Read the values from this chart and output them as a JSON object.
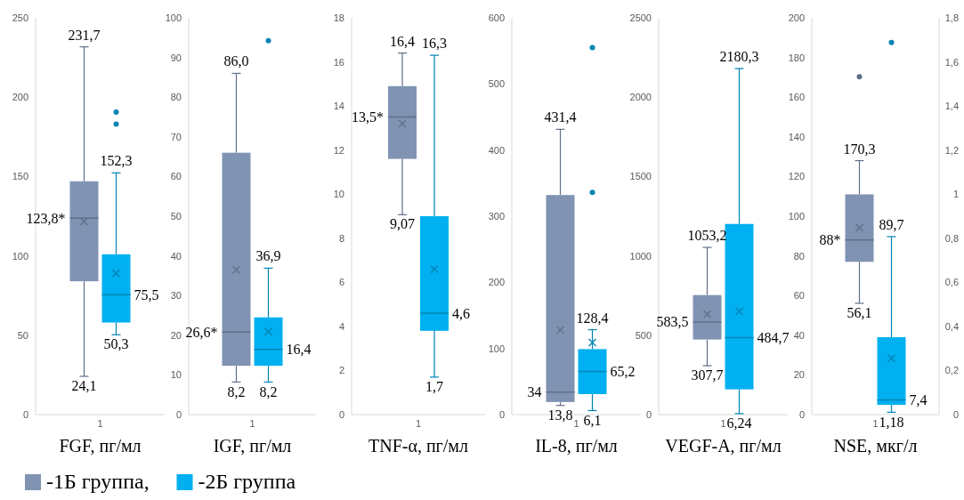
{
  "chart_data": [
    {
      "type": "box",
      "xlabel": "FGF, пг/мл",
      "categories": [
        "1"
      ],
      "ylim": [
        0,
        250
      ],
      "yticks": [
        0,
        50,
        100,
        150,
        200,
        250
      ],
      "legend": "bottom",
      "series": [
        {
          "name": "-1Б группа,",
          "color": "#8093b3",
          "boxes": [
            {
              "low": 24.1,
              "q1": 84,
              "median": 123.8,
              "q3": 147,
              "high": 231.7,
              "mean": 121.6
            }
          ]
        },
        {
          "name": "-2Б группа",
          "color": "#00b0f0",
          "boxes": [
            {
              "low": 50.3,
              "q1": 58,
              "median": 75.5,
              "q3": 101,
              "high": 152.3,
              "mean": 89,
              "outliers": [
                183,
                190.6
              ]
            }
          ]
        }
      ],
      "annotations": [
        "231,7",
        "123,8*",
        "24,1",
        "152,3",
        "75,5",
        "50,3"
      ]
    },
    {
      "type": "box",
      "xlabel": "IGF, пг/мл",
      "categories": [
        "1"
      ],
      "ylim": [
        0,
        100
      ],
      "yticks": [
        0,
        10,
        20,
        30,
        40,
        50,
        60,
        70,
        80,
        90,
        100
      ],
      "series": [
        {
          "color": "#8093b3",
          "boxes": [
            {
              "low": 8.2,
              "q1": 12.3,
              "median": 20.8,
              "q3": 66,
              "high": 86.0,
              "mean": 36.5
            }
          ]
        },
        {
          "color": "#00b0f0",
          "boxes": [
            {
              "low": 8.2,
              "q1": 12.3,
              "median": 16.4,
              "q3": 24.5,
              "high": 36.9,
              "mean": 20.9,
              "outliers": [
                94.2
              ]
            }
          ]
        }
      ],
      "annotations": [
        "86,0",
        "26,6*",
        "8,2",
        "36,9",
        "16,4",
        "8,2"
      ]
    },
    {
      "type": "box",
      "xlabel": "TNF-α, пг/мл",
      "categories": [
        "1"
      ],
      "ylim": [
        0,
        18
      ],
      "yticks": [
        0,
        2,
        4,
        6,
        8,
        10,
        12,
        14,
        16,
        18
      ],
      "series": [
        {
          "color": "#8093b3",
          "boxes": [
            {
              "low": 9.07,
              "q1": 11.6,
              "median": 13.5,
              "q3": 14.9,
              "high": 16.4,
              "mean": 13.2
            }
          ]
        },
        {
          "color": "#00b0f0",
          "boxes": [
            {
              "low": 1.7,
              "q1": 3.8,
              "median": 4.6,
              "q3": 9.0,
              "high": 16.3,
              "mean": 6.6
            }
          ]
        }
      ],
      "annotations": [
        "16,4",
        "13,5*",
        "9,07",
        "16,3",
        "4,6",
        "1,7"
      ]
    },
    {
      "type": "box",
      "xlabel": "IL-8, пг/мл",
      "categories": [
        "1"
      ],
      "ylim": [
        0,
        600
      ],
      "yticks": [
        0,
        100,
        200,
        300,
        400,
        500,
        600
      ],
      "series": [
        {
          "color": "#8093b3",
          "boxes": [
            {
              "low": 13.8,
              "q1": 19,
              "median": 34,
              "q3": 332,
              "high": 431.4,
              "mean": 128
            }
          ]
        },
        {
          "color": "#00b0f0",
          "boxes": [
            {
              "low": 6.1,
              "q1": 31,
              "median": 65.2,
              "q3": 99,
              "high": 128.4,
              "mean": 109,
              "outliers": [
                336,
                555
              ]
            }
          ]
        }
      ],
      "annotations": [
        "431,4",
        "34",
        "13,8",
        "128,4",
        "65,2",
        "6,1"
      ]
    },
    {
      "type": "box",
      "xlabel": "VEGF-A, пг/мл",
      "categories": [
        "1"
      ],
      "ylim": [
        0,
        2500
      ],
      "yticks": [
        0,
        500,
        1000,
        1500,
        2000,
        2500
      ],
      "series": [
        {
          "color": "#8093b3",
          "boxes": [
            {
              "low": 307.7,
              "q1": 473,
              "median": 583.5,
              "q3": 753,
              "high": 1053.2,
              "mean": 632
            }
          ]
        },
        {
          "color": "#00b0f0",
          "boxes": [
            {
              "low": 6.24,
              "q1": 159,
              "median": 484.7,
              "q3": 1201,
              "high": 2180.3,
              "mean": 650
            }
          ]
        }
      ],
      "annotations": [
        "1053,2",
        "583,5",
        "307,7",
        "2180,3",
        "484,7",
        "6,24"
      ]
    },
    {
      "type": "box",
      "xlabel": "NSE, мкг/л",
      "categories": [
        "1"
      ],
      "ylim": [
        0,
        200
      ],
      "yticks": [
        0,
        20,
        40,
        60,
        80,
        100,
        120,
        140,
        160,
        180,
        200
      ],
      "y2lim": [
        0,
        1.8
      ],
      "y2ticks": [
        0,
        {
          "value": 0.2,
          "label": "0,2"
        },
        {
          "value": 0.4,
          "label": "0,4"
        },
        {
          "value": 0.6,
          "label": "0,6"
        },
        {
          "value": 0.8,
          "label": "0,8"
        },
        1,
        {
          "value": 1.2,
          "label": "1,2"
        },
        {
          "value": 1.4,
          "label": "1,4"
        },
        {
          "value": 1.6,
          "label": "1,6"
        },
        {
          "value": 1.8,
          "label": "1,8"
        }
      ],
      "series": [
        {
          "color": "#8093b3",
          "boxes": [
            {
              "low": 56.1,
              "q1": 77,
              "median": 88,
              "q3": 111,
              "high": 128,
              "mean": 94.2,
              "outliers": [
                170.3
              ]
            }
          ]
        },
        {
          "color": "#00b0f0",
          "boxes": [
            {
              "low": 1.18,
              "q1": 4.9,
              "median": 7.4,
              "q3": 39,
              "high": 89.7,
              "mean": 28.4,
              "outliers": [
                187.6
              ]
            }
          ]
        }
      ],
      "annotations": [
        "170,3",
        "88*",
        "56,1",
        "89,7",
        "7,4",
        "1,18"
      ]
    }
  ]
}
